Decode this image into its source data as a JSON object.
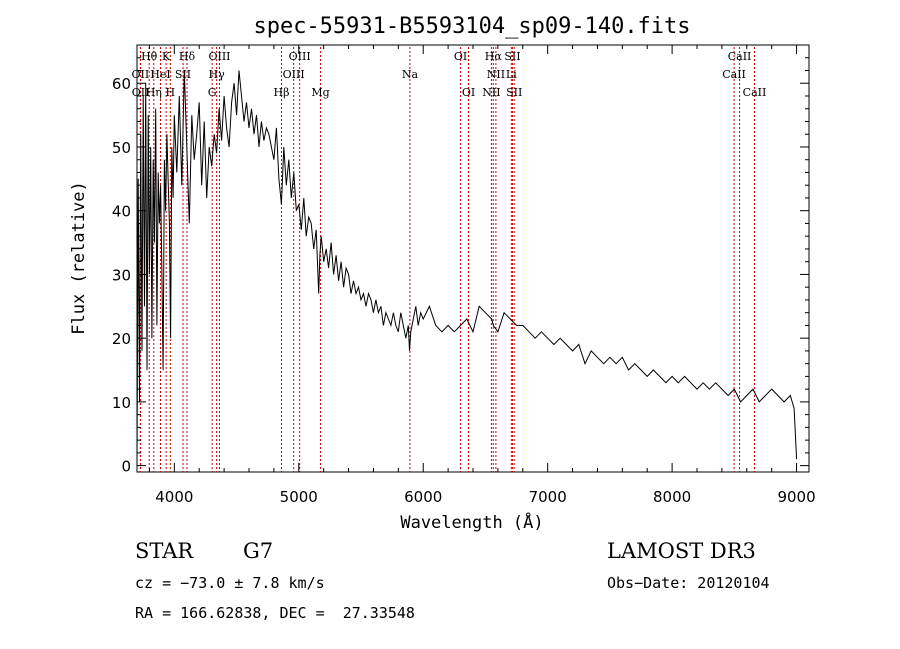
{
  "chart_data": {
    "type": "line",
    "title": "spec-55931-B5593104_sp09-140.fits",
    "xlabel": "Wavelength (Å)",
    "ylabel": "Flux (relative)",
    "xlim": [
      3700,
      9100
    ],
    "ylim": [
      -1,
      66
    ],
    "xticks": [
      4000,
      5000,
      6000,
      7000,
      8000,
      9000
    ],
    "yticks": [
      0,
      10,
      20,
      30,
      40,
      50,
      60
    ],
    "grid": false,
    "series": [
      {
        "name": "flux",
        "x": [
          3700,
          3710,
          3720,
          3730,
          3740,
          3750,
          3760,
          3770,
          3780,
          3790,
          3800,
          3810,
          3820,
          3830,
          3840,
          3850,
          3860,
          3870,
          3880,
          3890,
          3900,
          3910,
          3920,
          3930,
          3940,
          3950,
          3960,
          3970,
          3980,
          3990,
          4000,
          4020,
          4040,
          4060,
          4080,
          4100,
          4120,
          4140,
          4160,
          4180,
          4200,
          4220,
          4240,
          4260,
          4280,
          4300,
          4320,
          4340,
          4360,
          4380,
          4400,
          4420,
          4440,
          4460,
          4480,
          4500,
          4520,
          4540,
          4560,
          4580,
          4600,
          4620,
          4640,
          4660,
          4680,
          4700,
          4720,
          4740,
          4760,
          4780,
          4800,
          4820,
          4840,
          4860,
          4880,
          4900,
          4920,
          4940,
          4960,
          4980,
          5000,
          5020,
          5040,
          5060,
          5080,
          5100,
          5120,
          5140,
          5160,
          5170,
          5180,
          5200,
          5220,
          5240,
          5260,
          5280,
          5300,
          5320,
          5340,
          5360,
          5380,
          5400,
          5420,
          5440,
          5460,
          5480,
          5500,
          5520,
          5540,
          5560,
          5580,
          5600,
          5620,
          5640,
          5660,
          5680,
          5700,
          5720,
          5740,
          5760,
          5780,
          5800,
          5820,
          5840,
          5860,
          5880,
          5890,
          5900,
          5920,
          5940,
          5960,
          5980,
          6000,
          6050,
          6100,
          6150,
          6200,
          6250,
          6300,
          6350,
          6400,
          6450,
          6500,
          6550,
          6563,
          6600,
          6650,
          6700,
          6750,
          6800,
          6850,
          6900,
          6950,
          7000,
          7050,
          7100,
          7150,
          7200,
          7250,
          7300,
          7350,
          7400,
          7450,
          7500,
          7550,
          7600,
          7650,
          7700,
          7750,
          7800,
          7850,
          7900,
          7950,
          8000,
          8050,
          8100,
          8150,
          8200,
          8250,
          8300,
          8350,
          8400,
          8450,
          8500,
          8550,
          8600,
          8650,
          8700,
          8750,
          8800,
          8850,
          8900,
          8950,
          8980,
          9000
        ],
        "y": [
          0,
          45,
          10,
          52,
          18,
          58,
          25,
          60,
          15,
          55,
          30,
          50,
          20,
          48,
          35,
          56,
          22,
          46,
          38,
          44,
          30,
          15,
          48,
          40,
          52,
          45,
          38,
          20,
          50,
          42,
          55,
          46,
          58,
          44,
          62,
          50,
          38,
          55,
          48,
          52,
          57,
          44,
          54,
          42,
          50,
          47,
          52,
          49,
          56,
          51,
          58,
          53,
          50,
          57,
          60,
          55,
          62,
          58,
          54,
          57,
          53,
          56,
          52,
          55,
          50,
          54,
          51,
          53,
          52,
          50,
          48,
          53,
          45,
          41,
          50,
          44,
          48,
          42,
          46,
          40,
          41,
          37,
          42,
          36,
          39,
          38,
          34,
          37,
          27,
          33,
          36,
          32,
          34,
          31,
          35,
          30,
          33,
          29,
          32,
          28,
          31,
          30,
          27,
          29,
          27,
          28,
          26,
          27,
          25,
          27,
          26,
          24,
          26,
          24,
          25,
          22,
          24,
          23,
          22,
          24,
          22,
          21,
          24,
          22,
          20,
          22,
          18,
          21,
          23,
          25,
          22,
          24,
          23,
          25,
          22,
          21,
          22,
          21,
          22,
          23,
          21,
          25,
          24,
          23,
          22,
          21,
          24,
          23,
          22,
          22,
          21,
          20,
          21,
          20,
          19,
          20,
          19,
          18,
          19,
          16,
          18,
          17,
          16,
          17,
          16,
          17,
          15,
          16,
          15,
          14,
          15,
          14,
          13,
          14,
          13,
          14,
          13,
          12,
          13,
          12,
          13,
          12,
          11,
          12,
          10,
          11,
          12,
          10,
          11,
          12,
          11,
          10,
          11,
          9,
          1
        ]
      }
    ],
    "lines": [
      {
        "label": "Hθ",
        "x": 3798,
        "row": 0
      },
      {
        "label": "K",
        "x": 3934,
        "row": 0
      },
      {
        "label": "Hδ",
        "x": 4102,
        "row": 0
      },
      {
        "label": "OIII",
        "x": 4363,
        "row": 0
      },
      {
        "label": "OIII",
        "x": 5007,
        "row": 0
      },
      {
        "label": "OI",
        "x": 6300,
        "row": 0
      },
      {
        "label": "Hα",
        "x": 6563,
        "row": 0
      },
      {
        "label": "SII",
        "x": 6717,
        "row": 0
      },
      {
        "label": "CaII",
        "x": 8542,
        "row": 0
      },
      {
        "label": "OII",
        "x": 3727,
        "row": 1
      },
      {
        "label": "HeI",
        "x": 3889,
        "row": 1
      },
      {
        "label": "SII",
        "x": 4070,
        "row": 1
      },
      {
        "label": "Hγ",
        "x": 4340,
        "row": 1
      },
      {
        "label": "OIII",
        "x": 4959,
        "row": 1
      },
      {
        "label": "Na",
        "x": 5893,
        "row": 1
      },
      {
        "label": "NII",
        "x": 6584,
        "row": 1
      },
      {
        "label": "Li",
        "x": 6708,
        "row": 1
      },
      {
        "label": "CaII",
        "x": 8498,
        "row": 1
      },
      {
        "label": "OII",
        "x": 3729,
        "row": 2
      },
      {
        "label": "Hη",
        "x": 3835,
        "row": 2
      },
      {
        "label": "H",
        "x": 3968,
        "row": 2
      },
      {
        "label": "G",
        "x": 4304,
        "row": 2
      },
      {
        "label": "Hβ",
        "x": 4861,
        "row": 2
      },
      {
        "label": "Mg",
        "x": 5175,
        "row": 2
      },
      {
        "label": "OI",
        "x": 6364,
        "row": 2
      },
      {
        "label": "NII",
        "x": 6548,
        "row": 2
      },
      {
        "label": "SII",
        "x": 6731,
        "row": 2
      },
      {
        "label": "CaII",
        "x": 8662,
        "row": 2
      }
    ]
  },
  "info": {
    "class": "STAR",
    "subclass": "G7",
    "survey": "LAMOST DR3",
    "cz": "cz = −73.0 ± 7.8 km/s",
    "obs_date": "Obs−Date: 20120104",
    "coords": "RA = 166.62838, DEC =  27.33548"
  }
}
